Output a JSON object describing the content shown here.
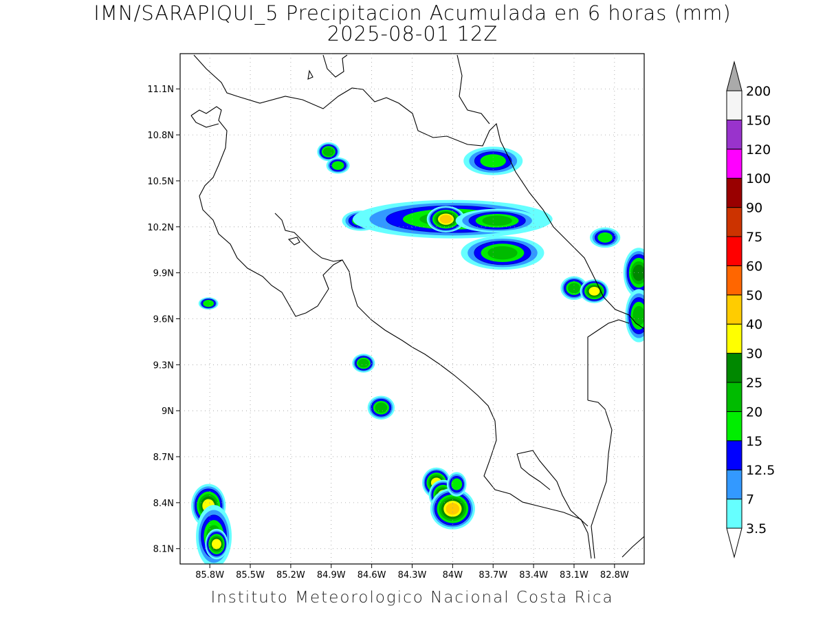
{
  "title": "IMN/SARAPIQUI_5 Precipitacion Acumulada en 6 horas (mm)",
  "subtitle": "2025-08-01 12Z",
  "footer": "Instituto Meteorologico Nacional Costa Rica",
  "map": {
    "lon_range": [
      -86.02,
      -82.58
    ],
    "lat_range": [
      8.0,
      11.33
    ],
    "lat_ticks": [
      {
        "value": 11.1,
        "label": "11.1N"
      },
      {
        "value": 10.8,
        "label": "10.8N"
      },
      {
        "value": 10.5,
        "label": "10.5N"
      },
      {
        "value": 10.2,
        "label": "10.2N"
      },
      {
        "value": 9.9,
        "label": "9.9N"
      },
      {
        "value": 9.6,
        "label": "9.6N"
      },
      {
        "value": 9.3,
        "label": "9.3N"
      },
      {
        "value": 9.0,
        "label": "9N"
      },
      {
        "value": 8.7,
        "label": "8.7N"
      },
      {
        "value": 8.4,
        "label": "8.4N"
      },
      {
        "value": 8.1,
        "label": "8.1N"
      }
    ],
    "lon_ticks": [
      {
        "value": -85.8,
        "label": "85.8W"
      },
      {
        "value": -85.5,
        "label": "85.5W"
      },
      {
        "value": -85.2,
        "label": "85.2W"
      },
      {
        "value": -84.9,
        "label": "84.9W"
      },
      {
        "value": -84.6,
        "label": "84.6W"
      },
      {
        "value": -84.3,
        "label": "84.3W"
      },
      {
        "value": -84.0,
        "label": "84W"
      },
      {
        "value": -83.7,
        "label": "83.7W"
      },
      {
        "value": -83.4,
        "label": "83.4W"
      },
      {
        "value": -83.1,
        "label": "83.1W"
      },
      {
        "value": -82.8,
        "label": "82.8W"
      }
    ],
    "grid": "dotted"
  },
  "colorbar": {
    "labels": [
      "3.5",
      "7",
      "12.5",
      "15",
      "20",
      "25",
      "30",
      "40",
      "50",
      "60",
      "75",
      "90",
      "100",
      "120",
      "150",
      "200"
    ],
    "colors": [
      "#66ffff",
      "#3399ff",
      "#0000ff",
      "#00ee00",
      "#00bb00",
      "#008800",
      "#ffff00",
      "#ffcc00",
      "#ff6600",
      "#ff0000",
      "#cc3300",
      "#990000",
      "#ff00ff",
      "#9933cc",
      "#f5f5f5"
    ],
    "above_color": "#aaaaaa",
    "below_color": "#ffffff"
  },
  "precip_cells": [
    {
      "lon": -84.68,
      "lat": 10.24,
      "rx": 0.09,
      "ry": 0.04,
      "level": 3
    },
    {
      "lon": -84.0,
      "lat": 10.25,
      "rx": 0.45,
      "ry": 0.07,
      "level": 4
    },
    {
      "lon": -84.05,
      "lat": 10.25,
      "rx": 0.05,
      "ry": 0.03,
      "level": 7
    },
    {
      "lon": -83.67,
      "lat": 10.24,
      "rx": 0.18,
      "ry": 0.04,
      "level": 4
    },
    {
      "lon": -83.7,
      "lat": 10.63,
      "rx": 0.15,
      "ry": 0.06,
      "level": 3
    },
    {
      "lon": -83.63,
      "lat": 10.03,
      "rx": 0.18,
      "ry": 0.06,
      "level": 4
    },
    {
      "lon": -83.1,
      "lat": 9.8,
      "rx": 0.05,
      "ry": 0.04,
      "level": 4
    },
    {
      "lon": -82.95,
      "lat": 9.78,
      "rx": 0.04,
      "ry": 0.03,
      "level": 6
    },
    {
      "lon": -82.62,
      "lat": 9.9,
      "rx": 0.05,
      "ry": 0.08,
      "level": 5
    },
    {
      "lon": -82.62,
      "lat": 9.62,
      "rx": 0.05,
      "ry": 0.1,
      "level": 4
    },
    {
      "lon": -82.87,
      "lat": 10.13,
      "rx": 0.07,
      "ry": 0.04,
      "level": 3
    },
    {
      "lon": -84.12,
      "lat": 8.53,
      "rx": 0.04,
      "ry": 0.04,
      "level": 6
    },
    {
      "lon": -84.07,
      "lat": 8.45,
      "rx": 0.04,
      "ry": 0.04,
      "level": 6
    },
    {
      "lon": -84.0,
      "lat": 8.36,
      "rx": 0.06,
      "ry": 0.05,
      "level": 7
    },
    {
      "lon": -83.97,
      "lat": 8.52,
      "rx": 0.04,
      "ry": 0.05,
      "level": 3
    },
    {
      "lon": -85.81,
      "lat": 8.38,
      "rx": 0.05,
      "ry": 0.06,
      "level": 6
    },
    {
      "lon": -85.77,
      "lat": 8.18,
      "rx": 0.07,
      "ry": 0.12,
      "level": 4
    },
    {
      "lon": -85.75,
      "lat": 8.13,
      "rx": 0.03,
      "ry": 0.04,
      "level": 6
    },
    {
      "lon": -84.66,
      "lat": 9.31,
      "rx": 0.04,
      "ry": 0.03,
      "level": 4
    },
    {
      "lon": -84.53,
      "lat": 9.02,
      "rx": 0.05,
      "ry": 0.04,
      "level": 4
    },
    {
      "lon": -84.92,
      "lat": 10.69,
      "rx": 0.04,
      "ry": 0.03,
      "level": 4
    },
    {
      "lon": -84.85,
      "lat": 10.6,
      "rx": 0.05,
      "ry": 0.03,
      "level": 3
    },
    {
      "lon": -85.81,
      "lat": 9.7,
      "rx": 0.04,
      "ry": 0.02,
      "level": 3
    }
  ]
}
